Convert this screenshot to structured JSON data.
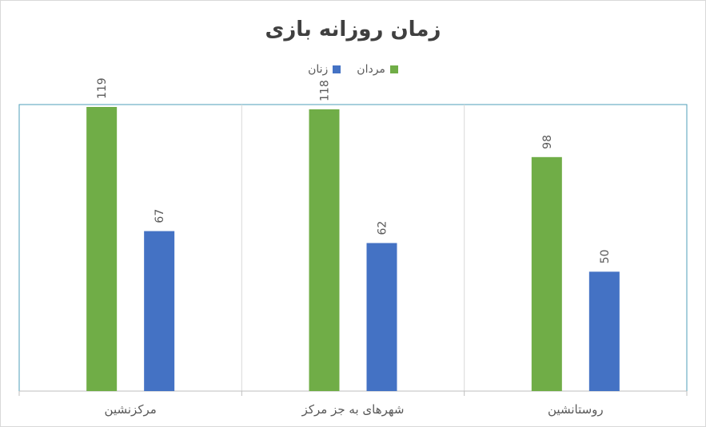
{
  "chart_data": {
    "type": "bar",
    "title": "زمان روزانه بازی",
    "categories": [
      "مرکزنشین",
      "شهرهای به جز مرکز",
      "روستانشین"
    ],
    "series": [
      {
        "name": "مردان",
        "color": "#70ad47",
        "values": [
          119,
          118,
          98
        ]
      },
      {
        "name": "زنان",
        "color": "#4472c4",
        "values": [
          67,
          62,
          50
        ]
      }
    ],
    "ylim": [
      0,
      120
    ],
    "legend_position": "top",
    "grid": false
  }
}
